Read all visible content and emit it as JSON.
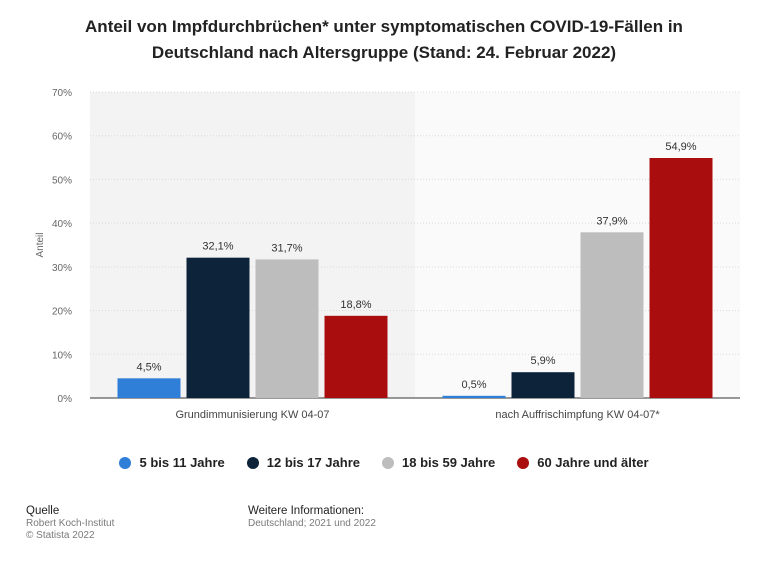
{
  "title_line1": "Anteil von Impfdurchbrüchen* unter symptomatischen COVID-19-Fällen in",
  "title_line2": "Deutschland nach Altersgruppe (Stand: 24. Februar 2022)",
  "chart_data": {
    "type": "bar",
    "categories": [
      "Grundimmunisierung KW 04-07",
      "nach Auffrischimpfung KW 04-07*"
    ],
    "series": [
      {
        "name": "5 bis 11 Jahre",
        "color": "#2f7ed8",
        "values": [
          4.5,
          0.5
        ],
        "labels": [
          "4,5%",
          "0,5%"
        ]
      },
      {
        "name": "12 bis 17 Jahre",
        "color": "#0d233a",
        "values": [
          32.1,
          5.9
        ],
        "labels": [
          "32,1%",
          "5,9%"
        ]
      },
      {
        "name": "18 bis 59 Jahre",
        "color": "#bdbdbd",
        "values": [
          31.7,
          37.9
        ],
        "labels": [
          "31,7%",
          "37,9%"
        ]
      },
      {
        "name": "60 Jahre und älter",
        "color": "#a90d0d",
        "values": [
          18.8,
          54.9
        ],
        "labels": [
          "18,8%",
          "54,9%"
        ]
      }
    ],
    "ylabel": "Anteil",
    "ylim": [
      0,
      70
    ],
    "yticks": [
      0,
      10,
      20,
      30,
      40,
      50,
      60,
      70
    ],
    "ytick_labels": [
      "0%",
      "10%",
      "20%",
      "30%",
      "40%",
      "50%",
      "60%",
      "70%"
    ],
    "grid": true,
    "legend_position": "bottom"
  },
  "footer": {
    "source_head": "Quelle",
    "source_line1": "Robert Koch-Institut",
    "source_line2": "© Statista 2022",
    "info_head": "Weitere Informationen:",
    "info_line1": "Deutschland; 2021 und 2022"
  }
}
